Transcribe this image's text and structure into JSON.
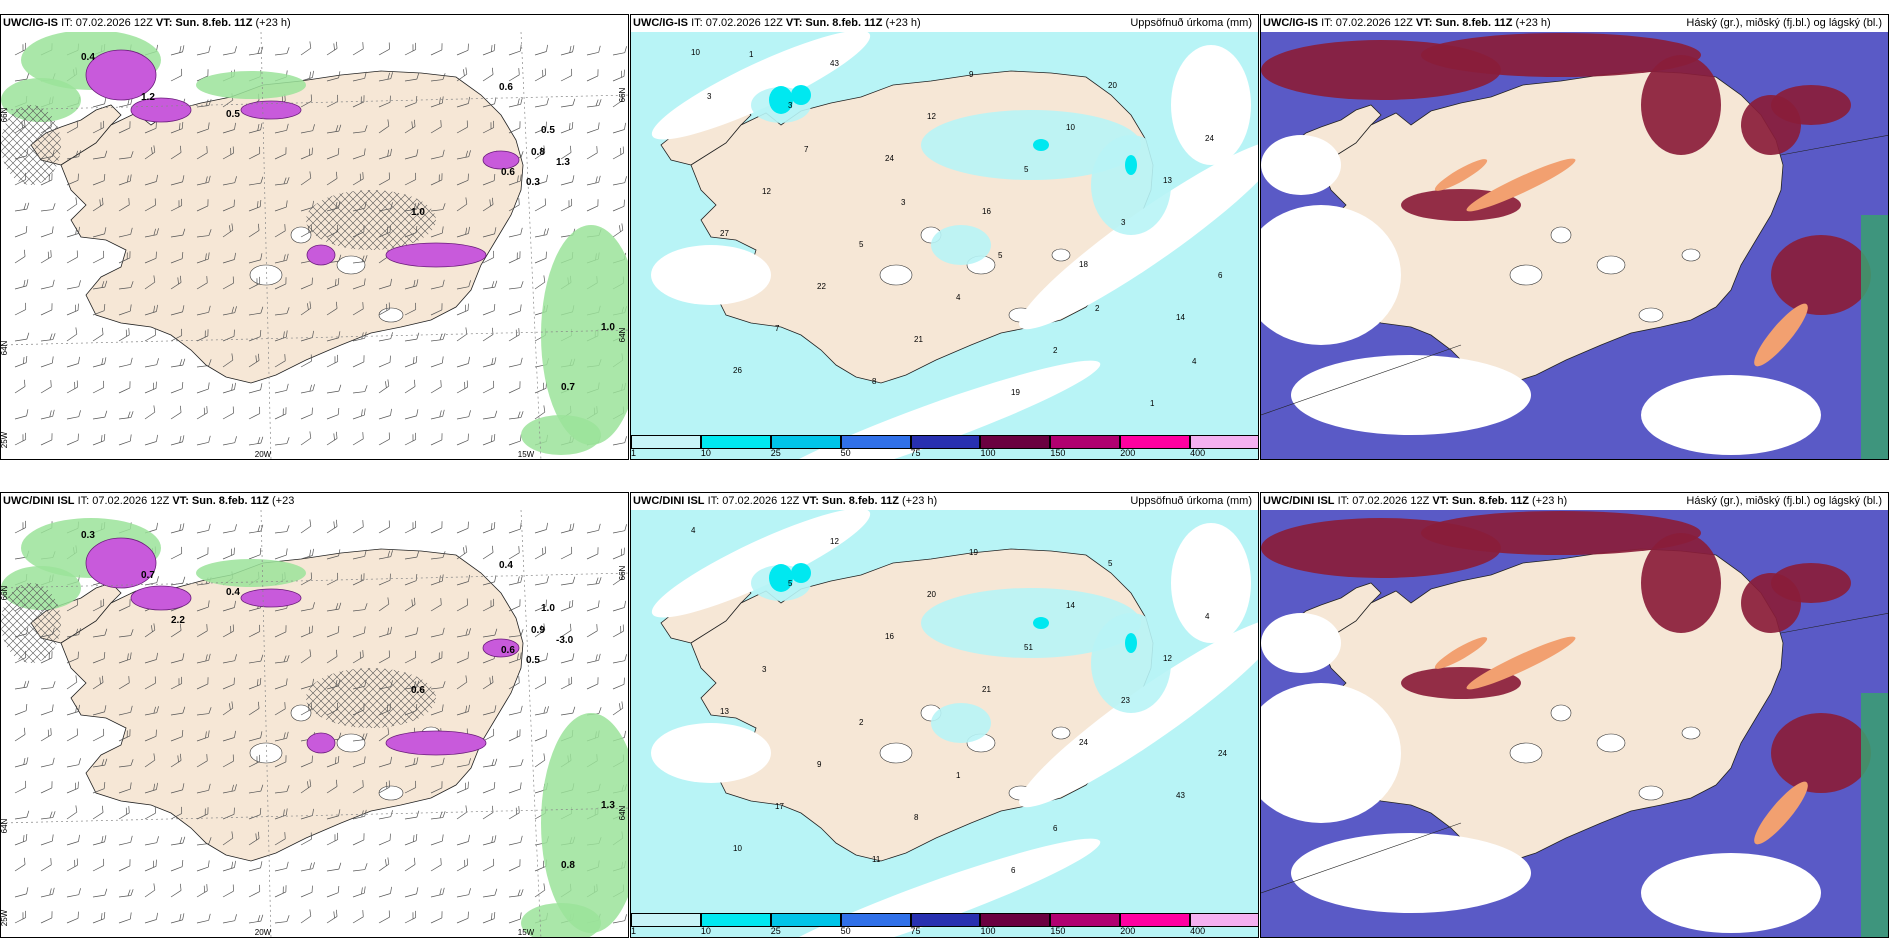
{
  "panels": [
    {
      "id": "top-left",
      "header": {
        "model": "UWC/IG-IS",
        "it": "IT: 07.02.2026 12Z",
        "vt": "VT: Sun. 8.feb. 11Z",
        "lead": "(+23 h)",
        "right": ""
      },
      "meridians": [
        "20W",
        "15W"
      ],
      "left_lat_labels": [
        "66N",
        "64N",
        "25W"
      ],
      "right_lat_labels": [
        "66N",
        "64N"
      ],
      "values": [
        "0.4",
        "0.6",
        "0.5",
        "0.6",
        "0.8",
        "1.0",
        "0.7",
        "1.2",
        "1.3",
        "0.5",
        "0.3",
        "1.0"
      ],
      "type": "precip-wind"
    },
    {
      "id": "top-center",
      "header": {
        "model": "UWC/IG-IS",
        "it": "IT: 07.02.2026 12Z",
        "vt": "VT: Sun. 8.feb. 11Z",
        "lead": "(+23 h)",
        "right": "Uppsöfnuð úrkoma (mm)"
      },
      "values": [
        "10",
        "3",
        "24",
        "16",
        "18",
        "14",
        "26",
        "43",
        "12",
        "5",
        "3",
        "6",
        "7",
        "8",
        "9",
        "10",
        "13",
        "27",
        "22",
        "21",
        "19",
        "20",
        "24",
        "12",
        "5",
        "4",
        "2",
        "1",
        "3",
        "7",
        "3",
        "5",
        "2",
        "4",
        "1"
      ],
      "type": "accum"
    },
    {
      "id": "top-right",
      "header": {
        "model": "UWC/IG-IS",
        "it": "IT: 07.02.2026 12Z",
        "vt": "VT: Sun. 8.feb. 11Z",
        "lead": "(+23 h)",
        "right": "Háský (gr.), miðský (fj.bl.) og lágský (bl.)"
      },
      "type": "clouds"
    },
    {
      "id": "bottom-left",
      "header": {
        "model": "UWC/DINI ISL",
        "it": "IT: 07.02.2026 12Z",
        "vt": "VT: Sun. 8.feb. 11Z",
        "lead": "(+23",
        "right": ""
      },
      "meridians": [
        "20W",
        "15W"
      ],
      "left_lat_labels": [
        "66N",
        "64N",
        "25W"
      ],
      "right_lat_labels": [
        "66N",
        "64N"
      ],
      "values": [
        "0.3",
        "0.4",
        "0.4",
        "0.6",
        "0.9",
        "1.3",
        "0.8",
        "0.7",
        "-3.0",
        "1.0",
        "0.5",
        "0.6",
        "2.2"
      ],
      "type": "precip-wind"
    },
    {
      "id": "bottom-center",
      "header": {
        "model": "UWC/DINI ISL",
        "it": "IT: 07.02.2026 12Z",
        "vt": "VT: Sun. 8.feb. 11Z",
        "lead": "(+23 h)",
        "right": "Uppsöfnuð úrkoma (mm)"
      },
      "values": [
        "4",
        "5",
        "16",
        "21",
        "24",
        "43",
        "10",
        "12",
        "20",
        "51",
        "23",
        "24",
        "17",
        "11",
        "19",
        "14",
        "12",
        "13",
        "9",
        "8",
        "6",
        "5",
        "4",
        "3",
        "2",
        "1",
        "6"
      ],
      "type": "accum"
    },
    {
      "id": "bottom-right",
      "header": {
        "model": "UWC/DINI ISL",
        "it": "IT: 07.02.2026 12Z",
        "vt": "VT: Sun. 8.feb. 11Z",
        "lead": "(+23 h)",
        "right": "Háský (gr.), miðský (fj.bl.) og lágský (bl.)"
      },
      "type": "clouds"
    }
  ],
  "colorbar": {
    "ticks": [
      "1",
      "10",
      "25",
      "50",
      "75",
      "100",
      "150",
      "200",
      "400"
    ],
    "colors": [
      "#c8f4f8",
      "#00e8f0",
      "#00c4e8",
      "#3070e8",
      "#2830b0",
      "#6a0040",
      "#b00070",
      "#ff00a0",
      "#f4b0f0"
    ]
  },
  "colors": {
    "land": "#f6e7d6",
    "sea_accum": "#b8f4f6",
    "snow_purple": "#c85adb",
    "green_precip": "#9be39a",
    "cloud_high": "#8a1d3a",
    "cloud_mid": "#5858c0",
    "cloud_low": "#f2a070"
  }
}
